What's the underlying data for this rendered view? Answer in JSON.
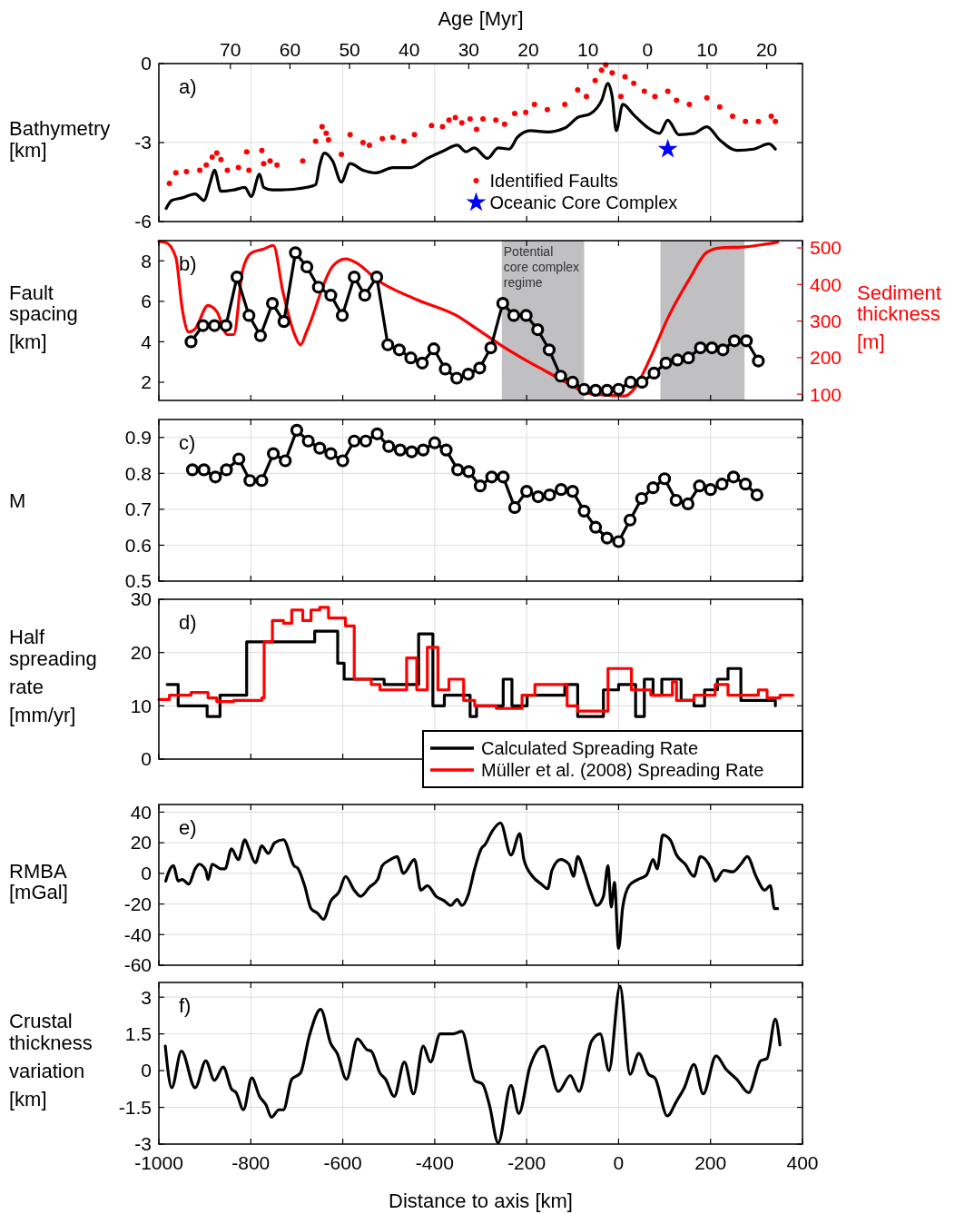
{
  "chart_data": [
    {
      "type": "line",
      "ylabel": "Bathymetry [km]",
      "x2label": "Age [Myr]",
      "annotations": [
        "a)"
      ],
      "xlim": [
        -1000,
        400
      ],
      "xticks": [
        -1000,
        -800,
        -600,
        -400,
        -200,
        0,
        200,
        400
      ],
      "x2lim": [
        82,
        -26
      ],
      "x2ticks": [
        70,
        60,
        50,
        40,
        30,
        20,
        10,
        0,
        {
          "value": -10,
          "label": "10"
        },
        {
          "value": -20,
          "label": "20"
        }
      ],
      "ylim": [
        -6,
        0
      ],
      "yticks": [
        -6,
        -3,
        0
      ],
      "grid": true,
      "tick_labels": "y",
      "legend": "bottom",
      "series": [
        {
          "color": "#000000",
          "x": [
            -984,
            -972,
            -949,
            -921,
            -902,
            -888,
            -879,
            -865,
            -837,
            -813,
            -799,
            -781,
            -772,
            -753,
            -734,
            -697,
            -678,
            -659,
            -650,
            -640,
            -622,
            -603,
            -584,
            -556,
            -528,
            -491,
            -453,
            -416,
            -379,
            -351,
            -332,
            -314,
            -285,
            -262,
            -238,
            -220,
            -192,
            -155,
            -117,
            -89,
            -61,
            -37,
            -23,
            -14,
            -5,
            9,
            33,
            61,
            89,
            107,
            131,
            164,
            192,
            220,
            257,
            294,
            327,
            341
          ],
          "values": [
            -5.5,
            -5.2,
            -5.1,
            -4.95,
            -5.2,
            -4.5,
            -4.05,
            -4.85,
            -4.8,
            -4.7,
            -5.05,
            -4.2,
            -4.7,
            -4.8,
            -4.8,
            -4.75,
            -4.7,
            -4.6,
            -3.85,
            -3.4,
            -3.7,
            -4.5,
            -3.8,
            -4.05,
            -4.15,
            -3.95,
            -3.95,
            -3.6,
            -3.3,
            -3.1,
            -3.35,
            -3.2,
            -3.6,
            -3.2,
            -3.25,
            -2.8,
            -2.55,
            -2.6,
            -2.45,
            -2.05,
            -1.9,
            -1.4,
            -0.75,
            -1.25,
            -2.55,
            -1.55,
            -1.95,
            -2.4,
            -2.65,
            -2.15,
            -2.7,
            -2.65,
            -2.4,
            -2.9,
            -3.3,
            -3.25,
            -3.05,
            -3.25
          ]
        },
        {
          "type": "scatter",
          "name": "Identified Faults",
          "color": "#ff0000",
          "marker": "circle",
          "x": [
            -977,
            -963,
            -940,
            -911,
            -897,
            -884,
            -874,
            -865,
            -851,
            -827,
            -809,
            -804,
            -776,
            -772,
            -758,
            -743,
            -687,
            -659,
            -645,
            -636,
            -631,
            -603,
            -584,
            -556,
            -542,
            -514,
            -491,
            -467,
            -444,
            -407,
            -383,
            -369,
            -355,
            -341,
            -323,
            -309,
            -295,
            -267,
            -248,
            -226,
            -202,
            -183,
            -155,
            -117,
            -89,
            -70,
            -51,
            -37,
            -28,
            -14,
            5,
            14,
            33,
            56,
            79,
            107,
            126,
            154,
            192,
            220,
            248,
            276,
            304,
            332,
            341
          ],
          "values": [
            -4.55,
            -4.15,
            -4.1,
            -4.05,
            -3.85,
            -3.55,
            -3.4,
            -3.65,
            -4.05,
            -3.95,
            -3.35,
            -4.05,
            -3.3,
            -3.8,
            -3.7,
            -3.85,
            -3.7,
            -2.95,
            -2.4,
            -2.65,
            -2.9,
            -3.45,
            -2.7,
            -3.0,
            -3.1,
            -2.85,
            -2.8,
            -2.95,
            -2.7,
            -2.35,
            -2.4,
            -2.15,
            -2.05,
            -2.25,
            -2.1,
            -2.5,
            -2.1,
            -2.15,
            -2.3,
            -1.9,
            -1.85,
            -1.55,
            -1.75,
            -1.55,
            -1.0,
            -1.25,
            -0.65,
            -0.25,
            -0.05,
            -0.35,
            -1.25,
            -0.5,
            -0.75,
            -1.05,
            -1.25,
            -1.05,
            -1.4,
            -1.55,
            -1.3,
            -1.65,
            -2.0,
            -2.2,
            -2.2,
            -2.0,
            -2.2
          ]
        },
        {
          "type": "scatter",
          "name": "Oceanic Core Complex",
          "color": "#0000ff",
          "marker": "star",
          "x": [
            107
          ],
          "values": [
            -3.25
          ]
        }
      ]
    },
    {
      "type": "line",
      "ylabel": "Fault spacing [km]",
      "y2label": "Sediment thickness [m]",
      "annotations": [
        "b)"
      ],
      "xlim": [
        -1000,
        400
      ],
      "xticks": [
        -1000,
        -800,
        -600,
        -400,
        -200,
        0,
        200,
        400
      ],
      "ylim": [
        1.1,
        9
      ],
      "yticks": [
        2,
        4,
        6,
        8
      ],
      "y2lim": [
        83,
        520
      ],
      "y2ticks": [
        100,
        200,
        300,
        400,
        500
      ],
      "tick_labels": "y",
      "bands": [
        {
          "axis": "x",
          "from": -254,
          "to": -75,
          "label": "Potential core complex regime",
          "color": "#c0c0c2"
        },
        {
          "axis": "x",
          "from": 91,
          "to": 274,
          "color": "#c0c0c2"
        }
      ],
      "series": [
        {
          "color": "#ff0000",
          "axis": "y2",
          "x": [
            -1000,
            -985,
            -963,
            -949,
            -935,
            -921,
            -893,
            -874,
            -851,
            -837,
            -818,
            -799,
            -772,
            -751,
            -730,
            -704,
            -692,
            -678,
            -622,
            -594,
            -566,
            -528,
            -444,
            -351,
            -304,
            -257,
            -210,
            -154,
            -108,
            -61,
            -23,
            14,
            33,
            70,
            107,
            154,
            192,
            220,
            276,
            313,
            346
          ],
          "values": [
            518,
            515,
            474,
            332,
            270,
            279,
            343,
            326,
            263,
            263,
            438,
            486,
            497,
            507,
            379,
            261,
            235,
            273,
            450,
            470,
            456,
            415,
            361,
            314,
            275,
            235,
            199,
            160,
            128,
            101,
            97,
            95,
            113,
            202,
            308,
            415,
            488,
            500,
            503,
            509,
            516
          ]
        },
        {
          "color": "#000000",
          "marker": "circle",
          "x": [
            -930,
            -904,
            -879,
            -854,
            -830,
            -804,
            -779,
            -753,
            -728,
            -703,
            -678,
            -653,
            -626,
            -601,
            -575,
            -552,
            -526,
            -502,
            -477,
            -452,
            -427,
            -402,
            -377,
            -352,
            -327,
            -302,
            -278,
            -252,
            -228,
            -201,
            -176,
            -151,
            -126,
            -100,
            -75,
            -50,
            -25,
            0,
            26,
            51,
            77,
            103,
            128,
            152,
            178,
            203,
            227,
            252,
            278,
            304
          ],
          "values": [
            4.0,
            4.8,
            4.8,
            4.8,
            7.2,
            5.3,
            4.3,
            5.9,
            5.0,
            8.4,
            7.7,
            6.7,
            6.3,
            5.3,
            7.2,
            6.3,
            7.2,
            3.85,
            3.6,
            3.2,
            2.95,
            3.65,
            2.65,
            2.2,
            2.4,
            2.7,
            3.7,
            5.9,
            5.3,
            5.3,
            4.6,
            3.6,
            2.3,
            2.0,
            1.65,
            1.6,
            1.6,
            1.65,
            2.0,
            2.0,
            2.45,
            2.95,
            3.1,
            3.2,
            3.7,
            3.7,
            3.6,
            4.05,
            4.05,
            3.05
          ]
        }
      ]
    },
    {
      "type": "line",
      "ylabel": "M",
      "annotations": [
        "c)"
      ],
      "xlim": [
        -1000,
        400
      ],
      "xticks": [
        -1000,
        -800,
        -600,
        -400,
        -200,
        0,
        200,
        400
      ],
      "ylim": [
        0.5,
        0.95
      ],
      "yticks": [
        0.5,
        0.6,
        0.7,
        0.8,
        0.9
      ],
      "grid": true,
      "tick_labels": "y",
      "series": [
        {
          "color": "#000000",
          "marker": "circle",
          "x": [
            -927,
            -902,
            -877,
            -853,
            -826,
            -802,
            -776,
            -751,
            -725,
            -700,
            -675,
            -650,
            -626,
            -600,
            -575,
            -550,
            -525,
            -500,
            -475,
            -450,
            -425,
            -400,
            -375,
            -350,
            -326,
            -301,
            -276,
            -251,
            -226,
            -200,
            -175,
            -150,
            -125,
            -100,
            -75,
            -50,
            -25,
            0,
            25,
            50,
            75,
            100,
            125,
            151,
            176,
            200,
            225,
            250,
            276,
            301
          ],
          "values": [
            0.81,
            0.81,
            0.79,
            0.81,
            0.84,
            0.78,
            0.78,
            0.855,
            0.835,
            0.92,
            0.89,
            0.87,
            0.855,
            0.835,
            0.89,
            0.89,
            0.91,
            0.875,
            0.865,
            0.86,
            0.865,
            0.885,
            0.865,
            0.81,
            0.805,
            0.765,
            0.79,
            0.79,
            0.705,
            0.75,
            0.735,
            0.74,
            0.755,
            0.75,
            0.695,
            0.65,
            0.62,
            0.61,
            0.67,
            0.73,
            0.76,
            0.785,
            0.725,
            0.715,
            0.765,
            0.755,
            0.77,
            0.79,
            0.77,
            0.74
          ]
        }
      ]
    },
    {
      "type": "step",
      "ylabel": "Half spreading rate [mm/yr]",
      "annotations": [
        "d)"
      ],
      "xlim": [
        -1000,
        400
      ],
      "xticks": [
        -1000,
        -800,
        -600,
        -400,
        -200,
        0,
        200,
        400
      ],
      "ylim": [
        0,
        30
      ],
      "yticks": [
        0,
        10,
        20,
        30
      ],
      "grid": true,
      "tick_labels": "y",
      "legend": "bottom right",
      "series": [
        {
          "name": "Calculated Spreading Rate",
          "color": "#000000",
          "x": [
            -982,
            -958,
            -895,
            -867,
            -809,
            -661,
            -611,
            -597,
            -510,
            -435,
            -404,
            -379,
            -323,
            -309,
            -251,
            -232,
            -199,
            -117,
            -89,
            -33,
            0,
            37,
            56,
            75,
            94,
            136,
            164,
            187,
            215,
            238,
            266,
            341
          ],
          "values": [
            14,
            10,
            8,
            12,
            22,
            24,
            18,
            15,
            14,
            23.5,
            10,
            12,
            8,
            10,
            15,
            10,
            12,
            14,
            8,
            13,
            14,
            8,
            15,
            12,
            15,
            11,
            10,
            13,
            15,
            17,
            11,
            10
          ]
        },
        {
          "name": "Müller et al. (2008) Spreading Rate",
          "color": "#ff0000",
          "x": [
            -1000,
            -977,
            -930,
            -893,
            -874,
            -837,
            -776,
            -771,
            -753,
            -729,
            -711,
            -687,
            -669,
            -650,
            -631,
            -594,
            -575,
            -538,
            -519,
            -463,
            -461,
            -439,
            -416,
            -393,
            -369,
            -337,
            -313,
            -266,
            -210,
            -182,
            -117,
            -112,
            -89,
            -28,
            -23,
            5,
            28,
            70,
            117,
            126,
            164,
            210,
            238,
            304,
            323,
            351,
            379
          ],
          "values": [
            11.2,
            12,
            12.5,
            11.5,
            10.8,
            11,
            11.5,
            22,
            26,
            25.5,
            28,
            26,
            28,
            28.5,
            26.5,
            25,
            15,
            14,
            13,
            13,
            19,
            13,
            21,
            13,
            15,
            11,
            10,
            9.5,
            12,
            14,
            14,
            10,
            9,
            9,
            17,
            17,
            13,
            12,
            14.5,
            11,
            12,
            14,
            12,
            13,
            11.5,
            12,
            12
          ]
        }
      ]
    },
    {
      "type": "line",
      "ylabel": "RMBA [mGal]",
      "annotations": [
        "e)"
      ],
      "xlim": [
        -1000,
        400
      ],
      "xticks": [
        -1000,
        -800,
        -600,
        -400,
        -200,
        0,
        200,
        400
      ],
      "ylim": [
        -60,
        45
      ],
      "yticks": [
        -60,
        -40,
        -20,
        0,
        20,
        40
      ],
      "grid": true,
      "tick_labels": "y",
      "series": [
        {
          "color": "#000000",
          "x": [
            -985,
            -977,
            -968,
            -958,
            -949,
            -935,
            -921,
            -912,
            -898,
            -893,
            -884,
            -865,
            -856,
            -842,
            -827,
            -813,
            -804,
            -790,
            -776,
            -762,
            -748,
            -729,
            -706,
            -697,
            -683,
            -669,
            -655,
            -642,
            -626,
            -608,
            -594,
            -575,
            -561,
            -542,
            -524,
            -514,
            -496,
            -482,
            -468,
            -444,
            -430,
            -416,
            -397,
            -379,
            -365,
            -351,
            -341,
            -327,
            -313,
            -299,
            -290,
            -276,
            -257,
            -234,
            -215,
            -206,
            -187,
            -168,
            -154,
            -145,
            -126,
            -108,
            -98,
            -89,
            -75,
            -61,
            -47,
            -33,
            -23,
            -16,
            -9,
            0,
            9,
            23,
            42,
            61,
            75,
            84,
            96,
            112,
            126,
            145,
            164,
            178,
            201,
            210,
            229,
            248,
            266,
            280,
            299,
            318,
            330,
            339,
            346
          ],
          "values": [
            -5,
            2,
            5,
            -5,
            -4,
            -7,
            3,
            6,
            2,
            -4,
            6,
            3,
            3,
            16,
            9,
            22,
            16,
            7,
            18,
            13,
            20,
            22,
            5,
            3,
            -8,
            -23,
            -26,
            -30,
            -18,
            -12,
            -2,
            -11,
            -15,
            -9,
            -4,
            5,
            9,
            11,
            0,
            9,
            -11,
            -8,
            -15,
            -18,
            -21,
            -17,
            -21,
            -14,
            3,
            16,
            19,
            27,
            33,
            12,
            26,
            9,
            -2,
            -7,
            -10,
            2,
            9,
            6,
            -2,
            11,
            1,
            -12,
            -21,
            -15,
            5,
            -22,
            -6,
            -49,
            -22,
            -8,
            -4,
            -1,
            9,
            3,
            25,
            22,
            12,
            6,
            -2,
            11,
            3,
            -5,
            2,
            1,
            6,
            11,
            -2,
            -11,
            -8,
            -23,
            -23
          ]
        }
      ]
    },
    {
      "type": "line",
      "ylabel": "Crustal thickness variation [km]",
      "xlabel": "Distance to axis [km]",
      "annotations": [
        "f)"
      ],
      "xlim": [
        -1000,
        400
      ],
      "xticks": [
        -1000,
        -800,
        -600,
        -400,
        -200,
        0,
        200,
        400
      ],
      "ylim": [
        -3,
        3.6
      ],
      "yticks": [
        -3,
        -1.5,
        0,
        1.5,
        3
      ],
      "grid": true,
      "series": [
        {
          "color": "#000000",
          "x": [
            -986,
            -972,
            -951,
            -921,
            -898,
            -879,
            -860,
            -842,
            -832,
            -816,
            -798,
            -781,
            -767,
            -755,
            -739,
            -729,
            -711,
            -692,
            -673,
            -648,
            -626,
            -612,
            -592,
            -568,
            -547,
            -538,
            -519,
            -507,
            -488,
            -466,
            -446,
            -425,
            -409,
            -388,
            -360,
            -341,
            -313,
            -296,
            -281,
            -262,
            -234,
            -217,
            -193,
            -163,
            -131,
            -105,
            -86,
            -59,
            -40,
            -21,
            3,
            25,
            44,
            65,
            79,
            106,
            126,
            143,
            164,
            184,
            212,
            234,
            257,
            283,
            309,
            323,
            341,
            351
          ],
          "values": [
            1.0,
            -0.7,
            0.8,
            -0.7,
            0.4,
            -0.4,
            0.15,
            -0.75,
            -0.9,
            -1.6,
            -0.3,
            -1.05,
            -1.4,
            -1.9,
            -1.6,
            -1.6,
            -0.35,
            -0.1,
            1.4,
            2.5,
            1.1,
            0.7,
            -0.35,
            1.3,
            0.85,
            0.8,
            -0.1,
            -0.35,
            -1.05,
            0.35,
            -0.95,
            1.0,
            0.35,
            1.5,
            1.5,
            1.6,
            -0.4,
            -0.55,
            -1.4,
            -2.95,
            -0.6,
            -1.75,
            0.15,
            1.0,
            -0.85,
            -0.2,
            -0.85,
            1.2,
            1.5,
            0,
            3.45,
            -0.15,
            0.7,
            -0.15,
            -0.3,
            -1.85,
            -1.25,
            -0.7,
            0.25,
            -0.95,
            0.6,
            0.05,
            -0.35,
            -0.9,
            0.4,
            0.5,
            2.1,
            1.05
          ]
        }
      ]
    }
  ]
}
